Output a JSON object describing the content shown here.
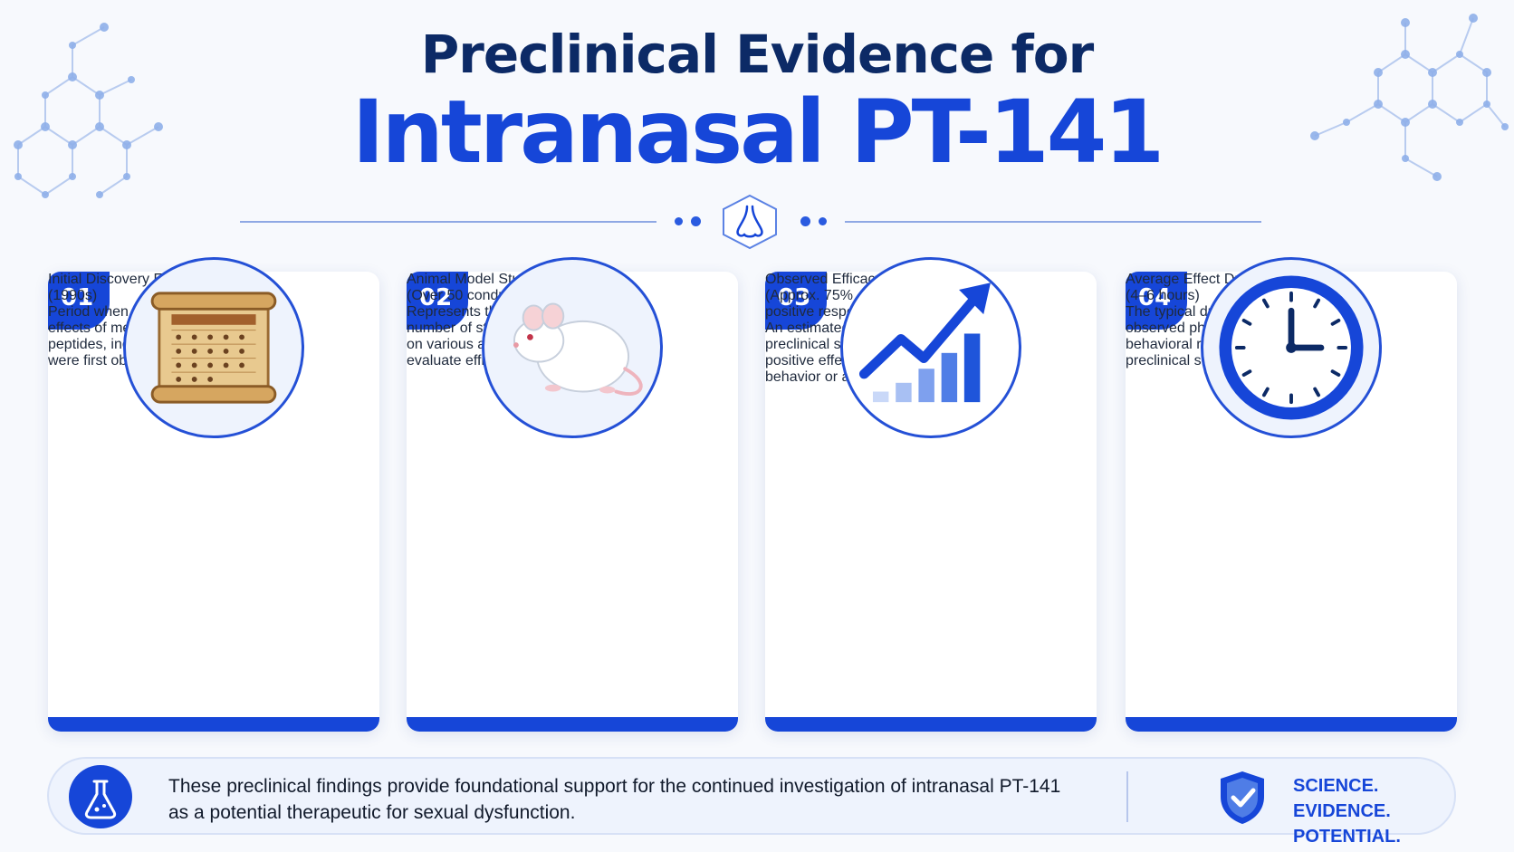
{
  "header": {
    "title_line1": "Preclinical Evidence for",
    "title_line2": "Intranasal PT-141",
    "divider_icon": "nose-icon"
  },
  "colors": {
    "primary": "#1646d8",
    "navy": "#0c2a66",
    "background": "#f7f9fd"
  },
  "cards": [
    {
      "number": "01",
      "icon": "scroll-calendar-icon",
      "title_line1": "Initial Discovery Era",
      "title_line2": "(1990s)",
      "title_line3": "",
      "desc_lines": [
        "Period when the aphrodisiac",
        "effects of melanocortin",
        "peptides, including PT-141,",
        "were first observed."
      ]
    },
    {
      "number": "02",
      "icon": "lab-mouse-icon",
      "title_line1": "Animal Model Studies",
      "title_line2": "(Over 50 conducted)",
      "title_line3": "",
      "desc_lines": [
        "Represents the extensive",
        "number of studies performed",
        "on various animal models to",
        "evaluate efficacy and safety."
      ]
    },
    {
      "number": "03",
      "icon": "trend-chart-icon",
      "title_line1": "Observed Efficacy Rate",
      "title_line2": "(Approx. 75%",
      "title_line3": "positive response)",
      "desc_lines": [
        "An estimated percentage of",
        "preclinical studies that reported",
        "positive effects on sexual",
        "behavior or arousal."
      ]
    },
    {
      "number": "04",
      "icon": "clock-icon",
      "title_line1": "Average Effect Duration",
      "title_line2": "(4–6 hours)",
      "title_line3": "",
      "desc_lines": [
        "The typical duration of",
        "observed physiological or",
        "behavioral responses in",
        "preclinical settings."
      ]
    }
  ],
  "footer": {
    "icon": "flask-icon",
    "message_line1": "These preclinical findings provide foundational support for the continued investigation of intranasal PT-141",
    "message_line2": "as a potential therapeutic for sexual dysfunction.",
    "badge_icon": "shield-check-icon",
    "tagline_line1": "SCIENCE. EVIDENCE.",
    "tagline_line2": "POTENTIAL."
  }
}
